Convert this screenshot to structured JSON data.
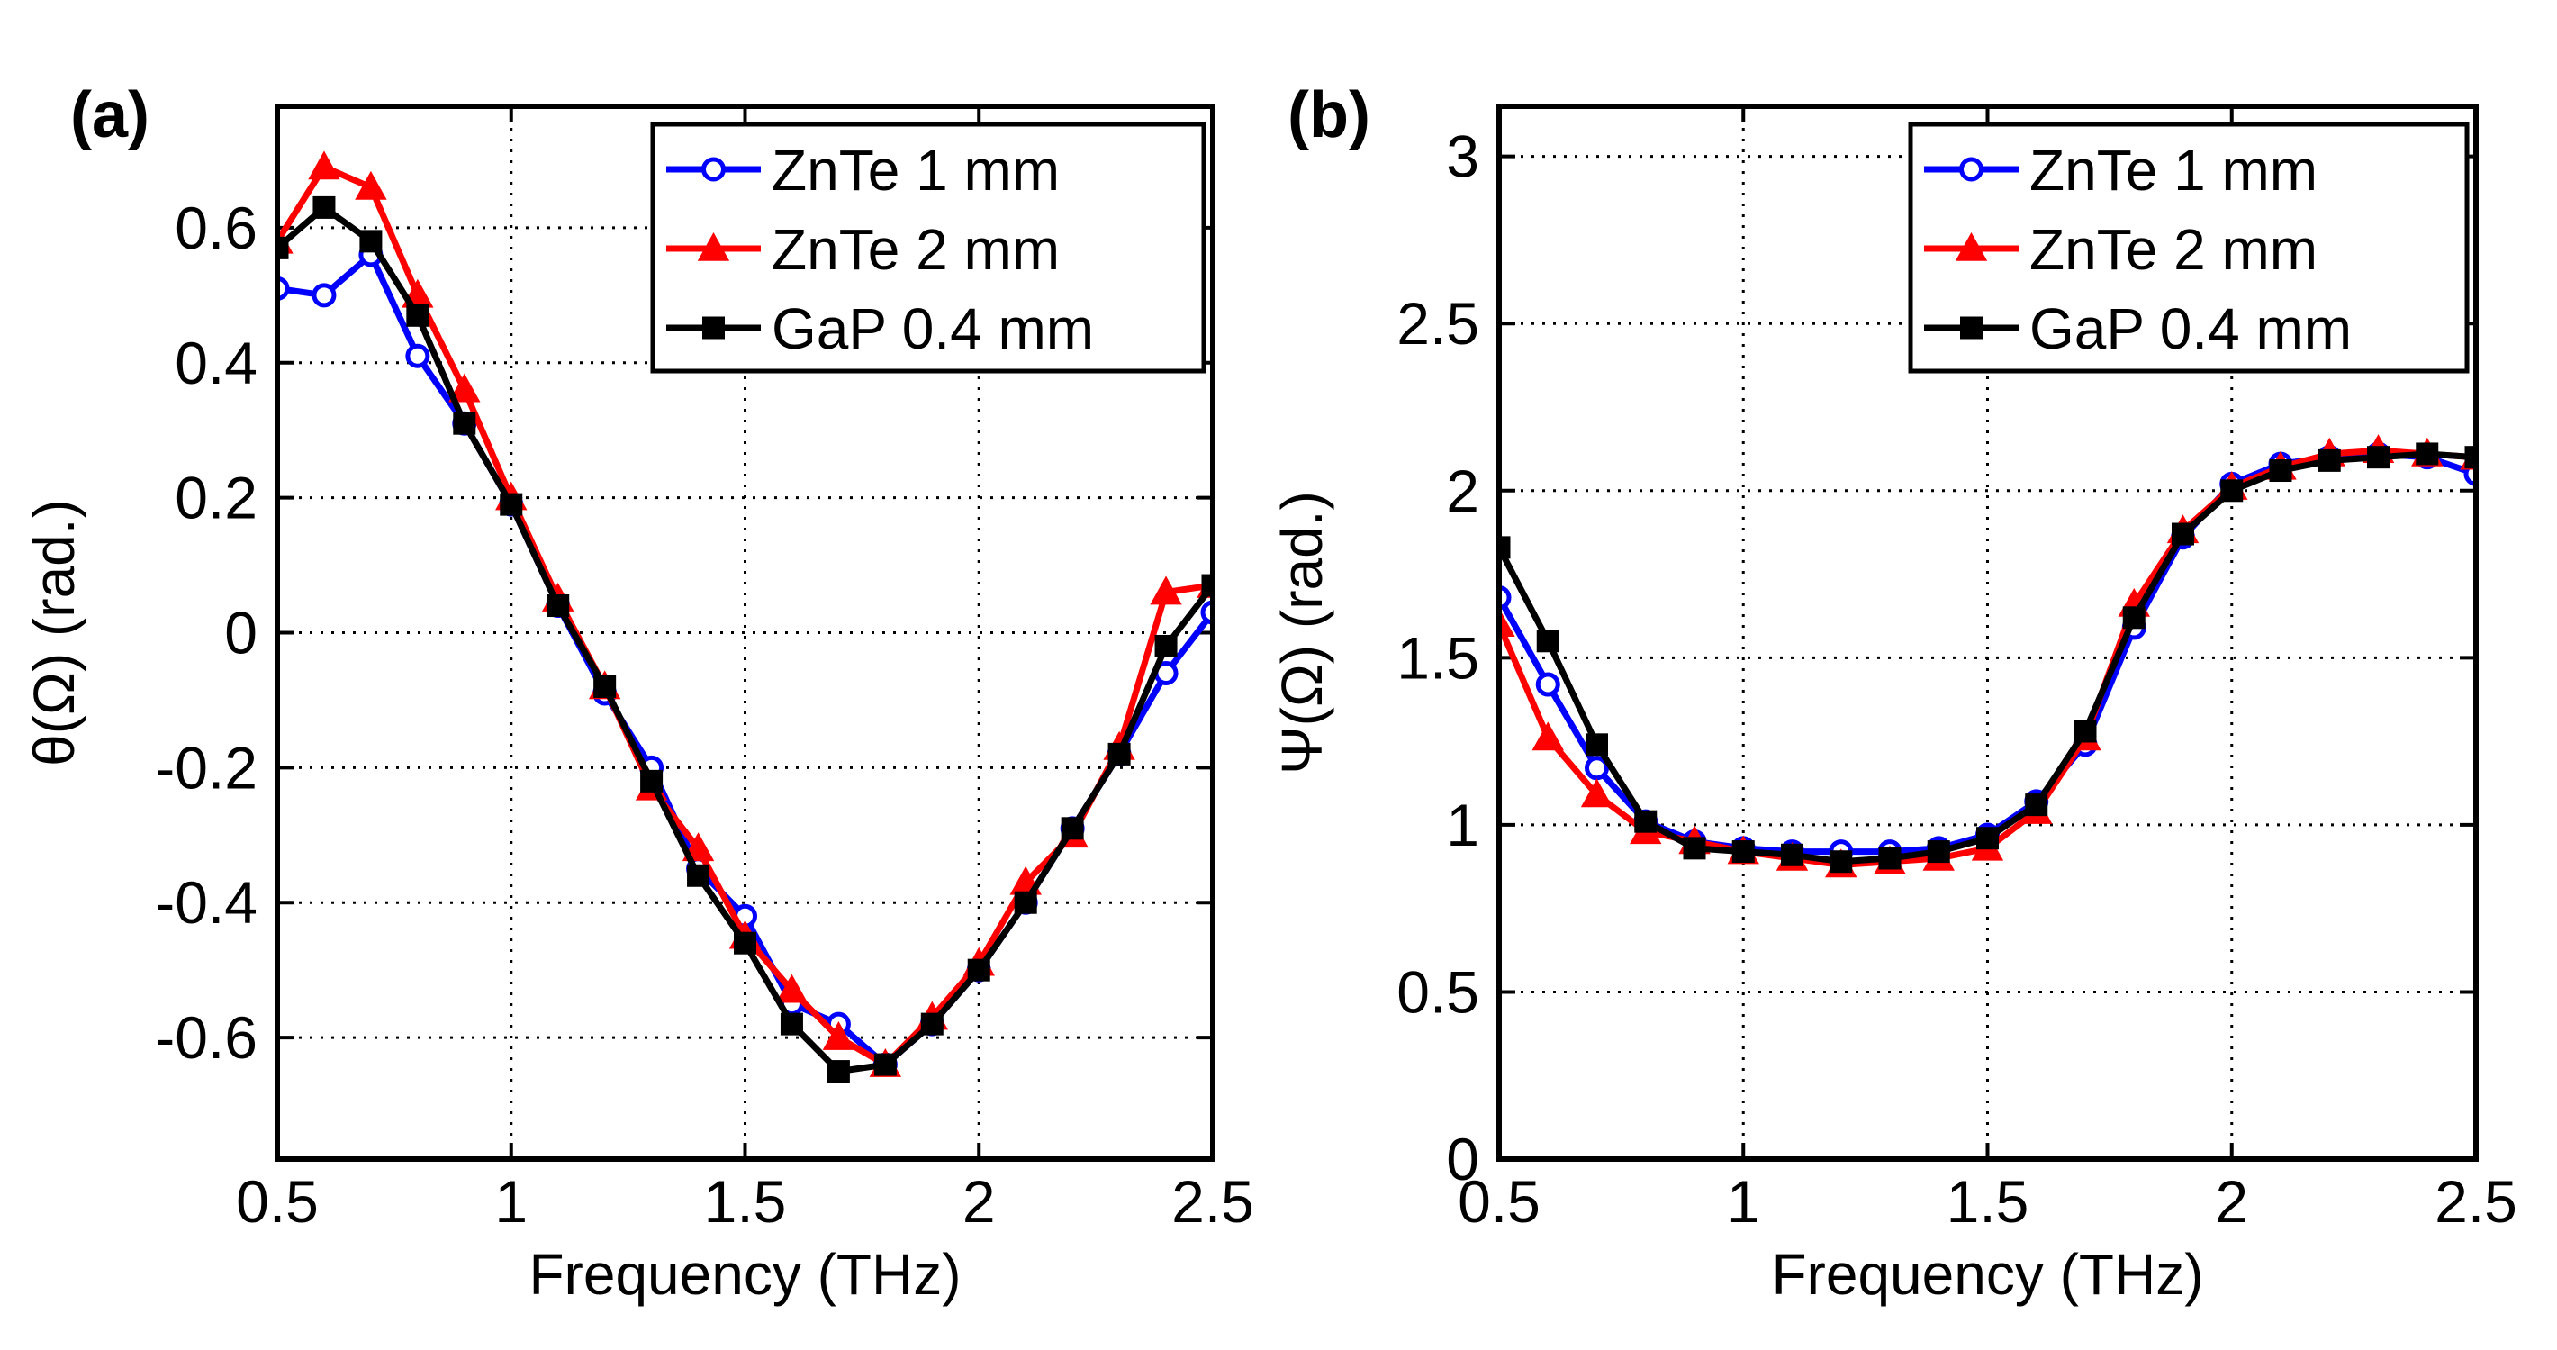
{
  "chart_data": [
    {
      "type": "line",
      "panel_label": "(a)",
      "xlabel": "Frequency (THz)",
      "ylabel": "θ(Ω) (rad.)",
      "xlim": [
        0.5,
        2.5
      ],
      "ylim": [
        -0.78,
        0.78
      ],
      "xticks": [
        0.5,
        1,
        1.5,
        2,
        2.5
      ],
      "xtick_labels": [
        "0.5",
        "1",
        "1.5",
        "2",
        "2.5"
      ],
      "yticks": [
        -0.6,
        -0.4,
        -0.2,
        0,
        0.2,
        0.4,
        0.6
      ],
      "ytick_labels": [
        "-0.6",
        "-0.4",
        "-0.2",
        "0",
        "0.2",
        "0.4",
        "0.6"
      ],
      "grid": true,
      "legend_position": "top-right",
      "x": [
        0.5,
        0.6,
        0.7,
        0.8,
        0.9,
        1.0,
        1.1,
        1.2,
        1.3,
        1.4,
        1.5,
        1.6,
        1.7,
        1.8,
        1.9,
        2.0,
        2.1,
        2.2,
        2.3,
        2.4,
        2.5
      ],
      "series": [
        {
          "name": "ZnTe 1 mm",
          "color": "#0000ff",
          "marker": "circle",
          "values": [
            0.51,
            0.5,
            0.56,
            0.41,
            0.31,
            0.19,
            0.04,
            -0.09,
            -0.2,
            -0.35,
            -0.42,
            -0.55,
            -0.58,
            -0.64,
            -0.58,
            -0.5,
            -0.4,
            -0.29,
            -0.18,
            -0.06,
            0.03
          ]
        },
        {
          "name": "ZnTe 2 mm",
          "color": "#ff0000",
          "marker": "triangle",
          "values": [
            0.58,
            0.69,
            0.66,
            0.5,
            0.36,
            0.2,
            0.05,
            -0.08,
            -0.23,
            -0.32,
            -0.45,
            -0.53,
            -0.6,
            -0.64,
            -0.57,
            -0.49,
            -0.37,
            -0.3,
            -0.17,
            0.06,
            0.07
          ]
        },
        {
          "name": "GaP 0.4 mm",
          "color": "#000000",
          "marker": "square",
          "values": [
            0.57,
            0.63,
            0.58,
            0.47,
            0.31,
            0.19,
            0.04,
            -0.08,
            -0.22,
            -0.36,
            -0.46,
            -0.58,
            -0.65,
            -0.64,
            -0.58,
            -0.5,
            -0.4,
            -0.29,
            -0.18,
            -0.02,
            0.07
          ]
        }
      ]
    },
    {
      "type": "line",
      "panel_label": "(b)",
      "xlabel": "Frequency (THz)",
      "ylabel": "Ψ(Ω) (rad.)",
      "xlim": [
        0.5,
        2.5
      ],
      "ylim": [
        0,
        3.15
      ],
      "xticks": [
        0.5,
        1,
        1.5,
        2,
        2.5
      ],
      "xtick_labels": [
        "0.5",
        "1",
        "1.5",
        "2",
        "2.5"
      ],
      "yticks": [
        0,
        0.5,
        1,
        1.5,
        2,
        2.5,
        3
      ],
      "ytick_labels": [
        "0",
        "0.5",
        "1",
        "1.5",
        "2",
        "2.5",
        "3"
      ],
      "grid": true,
      "legend_position": "top-right",
      "x": [
        0.5,
        0.6,
        0.7,
        0.8,
        0.9,
        1.0,
        1.1,
        1.2,
        1.3,
        1.4,
        1.5,
        1.6,
        1.7,
        1.8,
        1.9,
        2.0,
        2.1,
        2.2,
        2.3,
        2.4,
        2.5
      ],
      "series": [
        {
          "name": "ZnTe 1 mm",
          "color": "#0000ff",
          "marker": "circle",
          "values": [
            1.68,
            1.42,
            1.17,
            1.01,
            0.95,
            0.93,
            0.92,
            0.92,
            0.92,
            0.93,
            0.97,
            1.07,
            1.24,
            1.59,
            1.86,
            2.02,
            2.08,
            2.1,
            2.11,
            2.1,
            2.05
          ]
        },
        {
          "name": "ZnTe 2 mm",
          "color": "#ff0000",
          "marker": "triangle",
          "values": [
            1.6,
            1.26,
            1.09,
            0.98,
            0.95,
            0.92,
            0.9,
            0.88,
            0.89,
            0.9,
            0.93,
            1.04,
            1.26,
            1.66,
            1.88,
            2.01,
            2.07,
            2.11,
            2.12,
            2.11,
            2.1
          ]
        },
        {
          "name": "GaP 0.4 mm",
          "color": "#000000",
          "marker": "square",
          "values": [
            1.83,
            1.55,
            1.24,
            1.01,
            0.93,
            0.92,
            0.91,
            0.89,
            0.9,
            0.92,
            0.96,
            1.06,
            1.28,
            1.62,
            1.87,
            2.0,
            2.06,
            2.09,
            2.1,
            2.11,
            2.1
          ]
        }
      ]
    }
  ]
}
